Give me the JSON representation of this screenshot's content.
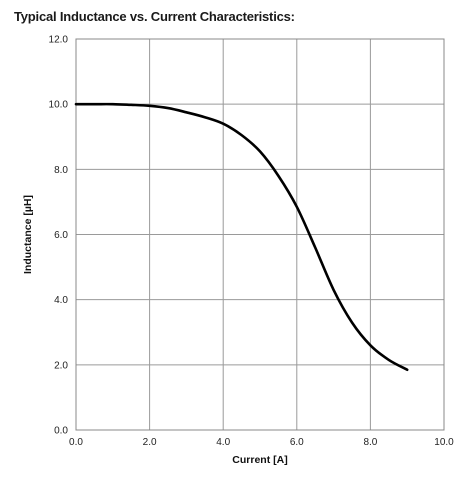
{
  "chart_data": {
    "type": "line",
    "title": "Typical Inductance vs. Current Characteristics:",
    "xlabel": "Current [A]",
    "ylabel": "Inductance [µH]",
    "xlim": [
      0,
      10
    ],
    "ylim": [
      0,
      12
    ],
    "x_ticks": [
      "0.0",
      "2.0",
      "4.0",
      "6.0",
      "8.0",
      "10.0"
    ],
    "y_ticks": [
      "0.0",
      "2.0",
      "4.0",
      "6.0",
      "8.0",
      "10.0",
      "12.0"
    ],
    "grid": true,
    "series": [
      {
        "x": [
          0.0,
          0.5,
          1.0,
          1.5,
          2.0,
          2.5,
          3.0,
          3.5,
          4.0,
          4.5,
          5.0,
          5.5,
          6.0,
          6.5,
          7.0,
          7.5,
          8.0,
          8.5,
          9.0
        ],
        "y": [
          10.0,
          10.0,
          10.0,
          9.98,
          9.95,
          9.88,
          9.75,
          9.6,
          9.4,
          9.05,
          8.55,
          7.8,
          6.85,
          5.6,
          4.3,
          3.3,
          2.6,
          2.15,
          1.85
        ],
        "color": "#000000"
      }
    ]
  }
}
